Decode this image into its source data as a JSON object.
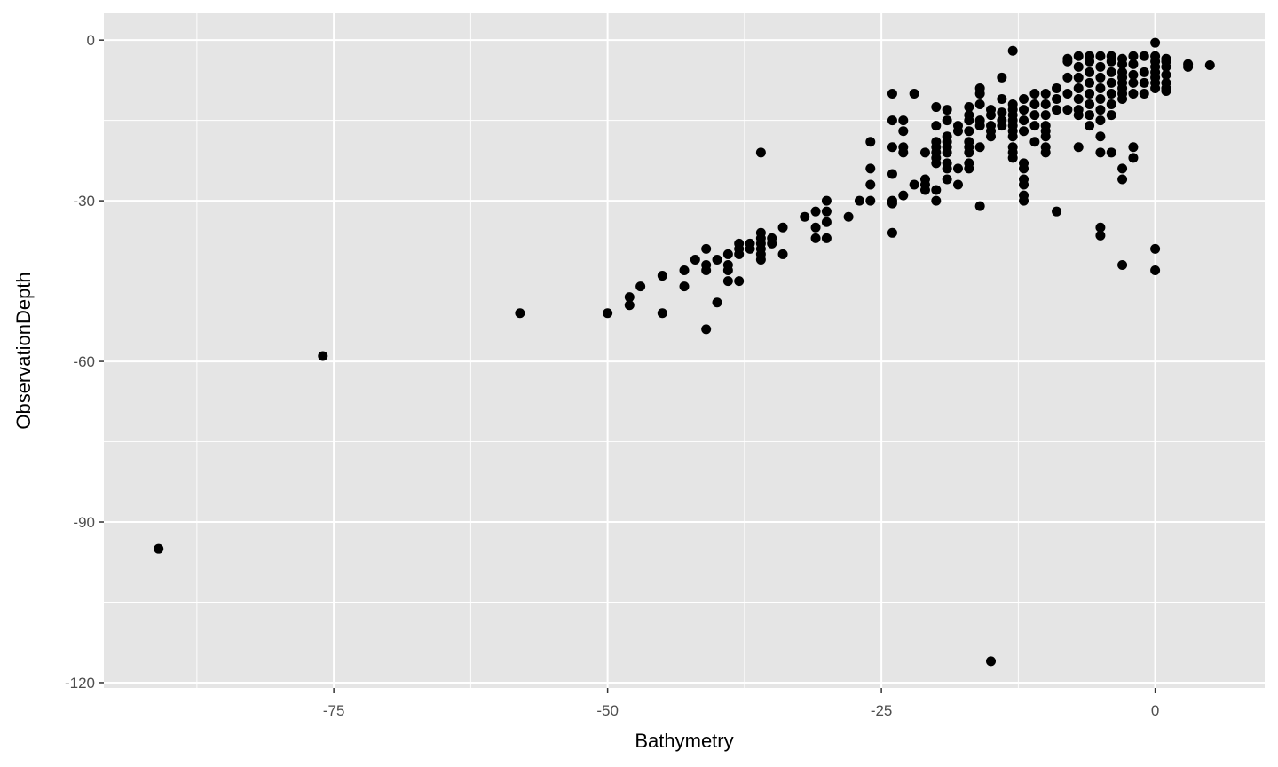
{
  "chart_data": {
    "type": "scatter",
    "xlabel": "Bathymetry",
    "ylabel": "ObservationDepth",
    "xlim": [
      -96,
      10
    ],
    "ylim": [
      -121,
      5
    ],
    "x_ticks": [
      -75,
      -50,
      -25,
      0
    ],
    "x_tick_labels": [
      "-75",
      "-50",
      "-25",
      "0"
    ],
    "y_ticks": [
      0,
      -30,
      -60,
      -90,
      -120
    ],
    "y_tick_labels": [
      "0",
      "-30",
      "-60",
      "-90",
      "-120"
    ],
    "grid": true,
    "colors": {
      "panel": "#e5e5e5",
      "grid": "#ffffff",
      "point": "#000000",
      "tick_text": "#4d4d4d"
    },
    "series": [
      {
        "points": [
          [
            -91,
            -95
          ],
          [
            -76,
            -59
          ],
          [
            -58,
            -51
          ],
          [
            -50,
            -51
          ],
          [
            -48,
            -48
          ],
          [
            -48,
            -49.5
          ],
          [
            -47,
            -46
          ],
          [
            -45,
            -44
          ],
          [
            -45,
            -51
          ],
          [
            -43,
            -43
          ],
          [
            -43,
            -46
          ],
          [
            -42,
            -41
          ],
          [
            -41,
            -39
          ],
          [
            -41,
            -42
          ],
          [
            -41,
            -43
          ],
          [
            -41,
            -54
          ],
          [
            -40,
            -41
          ],
          [
            -40,
            -49
          ],
          [
            -39,
            -40
          ],
          [
            -39,
            -42
          ],
          [
            -39,
            -43
          ],
          [
            -39,
            -45
          ],
          [
            -38,
            -38
          ],
          [
            -38,
            -39
          ],
          [
            -38,
            -40
          ],
          [
            -38,
            -45
          ],
          [
            -37,
            -38
          ],
          [
            -37,
            -39
          ],
          [
            -36,
            -21
          ],
          [
            -36,
            -36
          ],
          [
            -36,
            -37
          ],
          [
            -36,
            -38
          ],
          [
            -36,
            -39
          ],
          [
            -36,
            -40
          ],
          [
            -36,
            -41
          ],
          [
            -35,
            -37
          ],
          [
            -35,
            -38
          ],
          [
            -34,
            -35
          ],
          [
            -34,
            -40
          ],
          [
            -32,
            -33
          ],
          [
            -31,
            -32
          ],
          [
            -31,
            -35
          ],
          [
            -31,
            -37
          ],
          [
            -30,
            -30
          ],
          [
            -30,
            -32
          ],
          [
            -30,
            -34
          ],
          [
            -30,
            -37
          ],
          [
            -28,
            -33
          ],
          [
            -27,
            -30
          ],
          [
            -26,
            -19
          ],
          [
            -26,
            -24
          ],
          [
            -26,
            -27
          ],
          [
            -26,
            -30
          ],
          [
            -24,
            -10
          ],
          [
            -24,
            -15
          ],
          [
            -24,
            -20
          ],
          [
            -24,
            -25
          ],
          [
            -24,
            -30
          ],
          [
            -24,
            -30.5
          ],
          [
            -24,
            -36
          ],
          [
            -23,
            -15
          ],
          [
            -23,
            -17
          ],
          [
            -23,
            -20
          ],
          [
            -23,
            -21
          ],
          [
            -23,
            -29
          ],
          [
            -22,
            -10
          ],
          [
            -22,
            -27
          ],
          [
            -21,
            -21
          ],
          [
            -21,
            -26
          ],
          [
            -21,
            -27
          ],
          [
            -21,
            -28
          ],
          [
            -20,
            -12.5
          ],
          [
            -20,
            -16
          ],
          [
            -20,
            -19
          ],
          [
            -20,
            -20
          ],
          [
            -20,
            -21
          ],
          [
            -20,
            -22
          ],
          [
            -20,
            -23
          ],
          [
            -20,
            -28
          ],
          [
            -20,
            -30
          ],
          [
            -19,
            -13
          ],
          [
            -19,
            -15
          ],
          [
            -19,
            -18
          ],
          [
            -19,
            -19
          ],
          [
            -19,
            -20
          ],
          [
            -19,
            -21
          ],
          [
            -19,
            -23
          ],
          [
            -19,
            -24
          ],
          [
            -19,
            -26
          ],
          [
            -18,
            -16
          ],
          [
            -18,
            -17
          ],
          [
            -18,
            -24
          ],
          [
            -18,
            -27
          ],
          [
            -17,
            -12.5
          ],
          [
            -17,
            -14
          ],
          [
            -17,
            -15
          ],
          [
            -17,
            -17
          ],
          [
            -17,
            -19
          ],
          [
            -17,
            -20
          ],
          [
            -17,
            -21
          ],
          [
            -17,
            -23
          ],
          [
            -17,
            -24
          ],
          [
            -16,
            -9
          ],
          [
            -16,
            -10
          ],
          [
            -16,
            -12
          ],
          [
            -16,
            -15
          ],
          [
            -16,
            -16
          ],
          [
            -16,
            -20
          ],
          [
            -16,
            -31
          ],
          [
            -15,
            -13
          ],
          [
            -15,
            -14
          ],
          [
            -15,
            -16
          ],
          [
            -15,
            -17
          ],
          [
            -15,
            -18
          ],
          [
            -15,
            -116
          ],
          [
            -14,
            -7
          ],
          [
            -14,
            -11
          ],
          [
            -14,
            -13.5
          ],
          [
            -14,
            -15
          ],
          [
            -14,
            -16
          ],
          [
            -13,
            -2
          ],
          [
            -13,
            -12
          ],
          [
            -13,
            -13
          ],
          [
            -13,
            -14
          ],
          [
            -13,
            -15
          ],
          [
            -13,
            -16
          ],
          [
            -13,
            -17
          ],
          [
            -13,
            -18
          ],
          [
            -13,
            -20
          ],
          [
            -13,
            -21
          ],
          [
            -13,
            -22
          ],
          [
            -12,
            -11
          ],
          [
            -12,
            -13
          ],
          [
            -12,
            -15
          ],
          [
            -12,
            -17
          ],
          [
            -12,
            -23
          ],
          [
            -12,
            -24
          ],
          [
            -12,
            -26
          ],
          [
            -12,
            -27
          ],
          [
            -12,
            -29
          ],
          [
            -12,
            -30
          ],
          [
            -11,
            -10
          ],
          [
            -11,
            -12
          ],
          [
            -11,
            -14
          ],
          [
            -11,
            -16
          ],
          [
            -11,
            -19
          ],
          [
            -10,
            -10
          ],
          [
            -10,
            -12
          ],
          [
            -10,
            -14
          ],
          [
            -10,
            -16
          ],
          [
            -10,
            -17
          ],
          [
            -10,
            -18
          ],
          [
            -10,
            -20
          ],
          [
            -10,
            -21
          ],
          [
            -9,
            -9
          ],
          [
            -9,
            -11
          ],
          [
            -9,
            -13
          ],
          [
            -9,
            -32
          ],
          [
            -8,
            -3.5
          ],
          [
            -8,
            -4
          ],
          [
            -8,
            -7
          ],
          [
            -8,
            -10
          ],
          [
            -8,
            -13
          ],
          [
            -7,
            -3
          ],
          [
            -7,
            -5
          ],
          [
            -7,
            -7
          ],
          [
            -7,
            -9
          ],
          [
            -7,
            -11
          ],
          [
            -7,
            -13
          ],
          [
            -7,
            -14
          ],
          [
            -7,
            -20
          ],
          [
            -6,
            -3
          ],
          [
            -6,
            -4
          ],
          [
            -6,
            -6
          ],
          [
            -6,
            -8
          ],
          [
            -6,
            -10
          ],
          [
            -6,
            -12
          ],
          [
            -6,
            -14
          ],
          [
            -6,
            -16
          ],
          [
            -5,
            -3
          ],
          [
            -5,
            -5
          ],
          [
            -5,
            -7
          ],
          [
            -5,
            -9
          ],
          [
            -5,
            -11
          ],
          [
            -5,
            -13
          ],
          [
            -5,
            -15
          ],
          [
            -5,
            -18
          ],
          [
            -5,
            -21
          ],
          [
            -5,
            -35
          ],
          [
            -5,
            -36.5
          ],
          [
            -4,
            -3
          ],
          [
            -4,
            -4
          ],
          [
            -4,
            -6
          ],
          [
            -4,
            -8
          ],
          [
            -4,
            -10
          ],
          [
            -4,
            -12
          ],
          [
            -4,
            -14
          ],
          [
            -4,
            -21
          ],
          [
            -3,
            -3.5
          ],
          [
            -3,
            -4.5
          ],
          [
            -3,
            -6
          ],
          [
            -3,
            -7
          ],
          [
            -3,
            -8
          ],
          [
            -3,
            -9
          ],
          [
            -3,
            -10
          ],
          [
            -3,
            -11
          ],
          [
            -3,
            -24
          ],
          [
            -3,
            -26
          ],
          [
            -3,
            -42
          ],
          [
            -2,
            -3
          ],
          [
            -2,
            -4.5
          ],
          [
            -2,
            -6.5
          ],
          [
            -2,
            -8
          ],
          [
            -2,
            -10
          ],
          [
            -2,
            -20
          ],
          [
            -2,
            -22
          ],
          [
            -1,
            -3
          ],
          [
            -1,
            -6
          ],
          [
            -1,
            -8
          ],
          [
            -1,
            -10
          ],
          [
            0,
            -0.5
          ],
          [
            0,
            -3
          ],
          [
            0,
            -4
          ],
          [
            0,
            -5
          ],
          [
            0,
            -6
          ],
          [
            0,
            -7
          ],
          [
            0,
            -8
          ],
          [
            0,
            -9
          ],
          [
            0,
            -39
          ],
          [
            0,
            -43
          ],
          [
            1,
            -3.5
          ],
          [
            1,
            -4
          ],
          [
            1,
            -5
          ],
          [
            1,
            -6.5
          ],
          [
            1,
            -8
          ],
          [
            1,
            -9
          ],
          [
            1,
            -9.5
          ],
          [
            3,
            -4.5
          ],
          [
            3,
            -5
          ],
          [
            5,
            -4.7
          ]
        ]
      }
    ]
  }
}
